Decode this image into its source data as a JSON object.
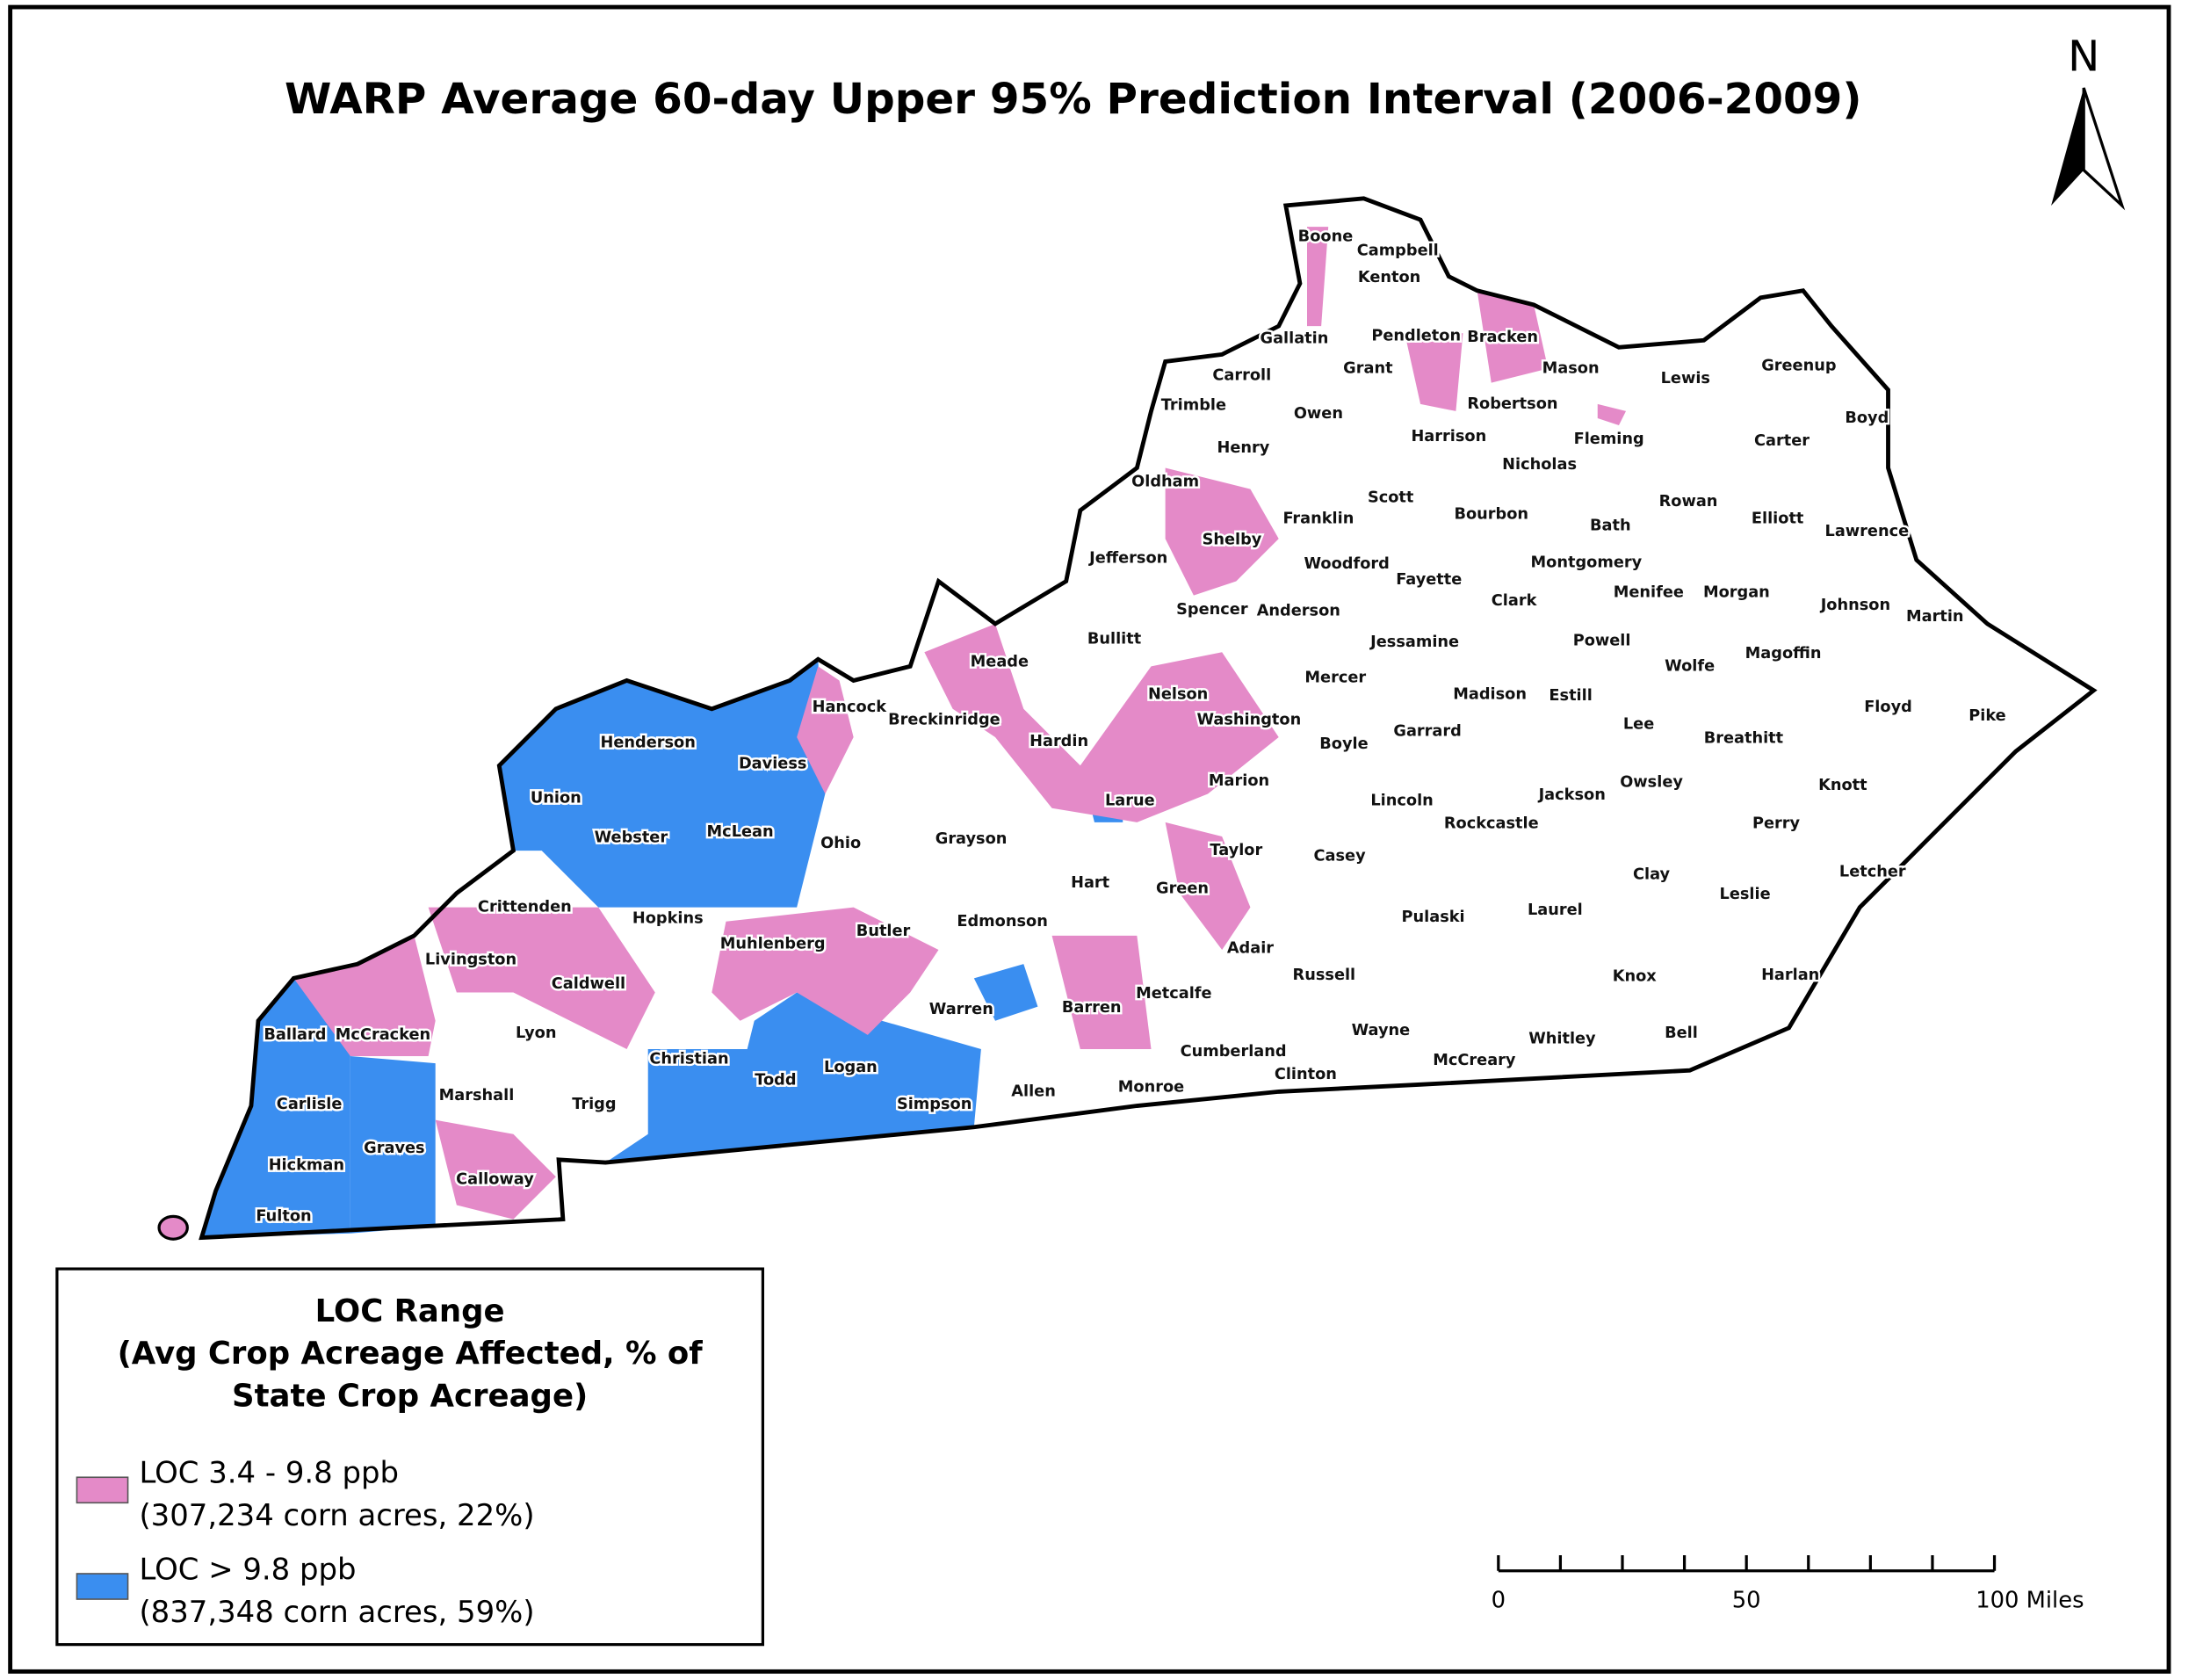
{
  "title": "WARP Average 60-day Upper 95% Prediction Interval (2006-2009)",
  "north": "N",
  "counties": [
    "Boone",
    "Campbell",
    "Kenton",
    "Gallatin",
    "Pendleton",
    "Bracken",
    "Mason",
    "Carroll",
    "Grant",
    "Lewis",
    "Greenup",
    "Trimble",
    "Owen",
    "Robertson",
    "Boyd",
    "Henry",
    "Harrison",
    "Fleming",
    "Carter",
    "Oldham",
    "Nicholas",
    "Scott",
    "Rowan",
    "Elliott",
    "Franklin",
    "Bourbon",
    "Shelby",
    "Bath",
    "Lawrence",
    "Jefferson",
    "Woodford",
    "Montgomery",
    "Fayette",
    "Menifee",
    "Morgan",
    "Clark",
    "Johnson",
    "Martin",
    "Spencer",
    "Anderson",
    "Bullitt",
    "Jessamine",
    "Powell",
    "Magoffin",
    "Meade",
    "Wolfe",
    "Mercer",
    "Nelson",
    "Madison",
    "Estill",
    "Hancock",
    "Floyd",
    "Pike",
    "Breckinridge",
    "Washington",
    "Lee",
    "Hardin",
    "Henderson",
    "Boyle",
    "Garrard",
    "Breathitt",
    "Daviess",
    "Marion",
    "Owsley",
    "Knott",
    "Jackson",
    "Union",
    "Lincoln",
    "Larue",
    "Perry",
    "Rockcastle",
    "McLean",
    "Webster",
    "Ohio",
    "Grayson",
    "Taylor",
    "Casey",
    "Clay",
    "Letcher",
    "Hart",
    "Green",
    "Leslie",
    "Crittenden",
    "Laurel",
    "Pulaski",
    "Hopkins",
    "Edmonson",
    "Butler",
    "Muhlenberg",
    "Adair",
    "Livingston",
    "Russell",
    "Knox",
    "Harlan",
    "Caldwell",
    "Metcalfe",
    "Barren",
    "Warren",
    "Lyon",
    "Wayne",
    "Ballard",
    "McCracken",
    "Whitley",
    "Bell",
    "Christian",
    "Cumberland",
    "McCreary",
    "Logan",
    "Todd",
    "Clinton",
    "Marshall",
    "Allen",
    "Monroe",
    "Simpson",
    "Carlisle",
    "Trigg",
    "Graves",
    "Hickman",
    "Calloway",
    "Fulton"
  ],
  "legend": {
    "title": [
      "LOC Range",
      "(Avg Crop Acreage Affected, % of",
      "State Crop Acreage)"
    ],
    "items": [
      {
        "label": "LOC 3.4 - 9.8 ppb",
        "detail": "(307,234 corn acres, 22%)",
        "color": "#e48ac8"
      },
      {
        "label": "LOC > 9.8 ppb",
        "detail": "(837,348 corn acres, 59%)",
        "color": "#3a8ef0"
      }
    ]
  },
  "scale_bar": {
    "labels": [
      "0",
      "50",
      "100 Miles"
    ]
  }
}
